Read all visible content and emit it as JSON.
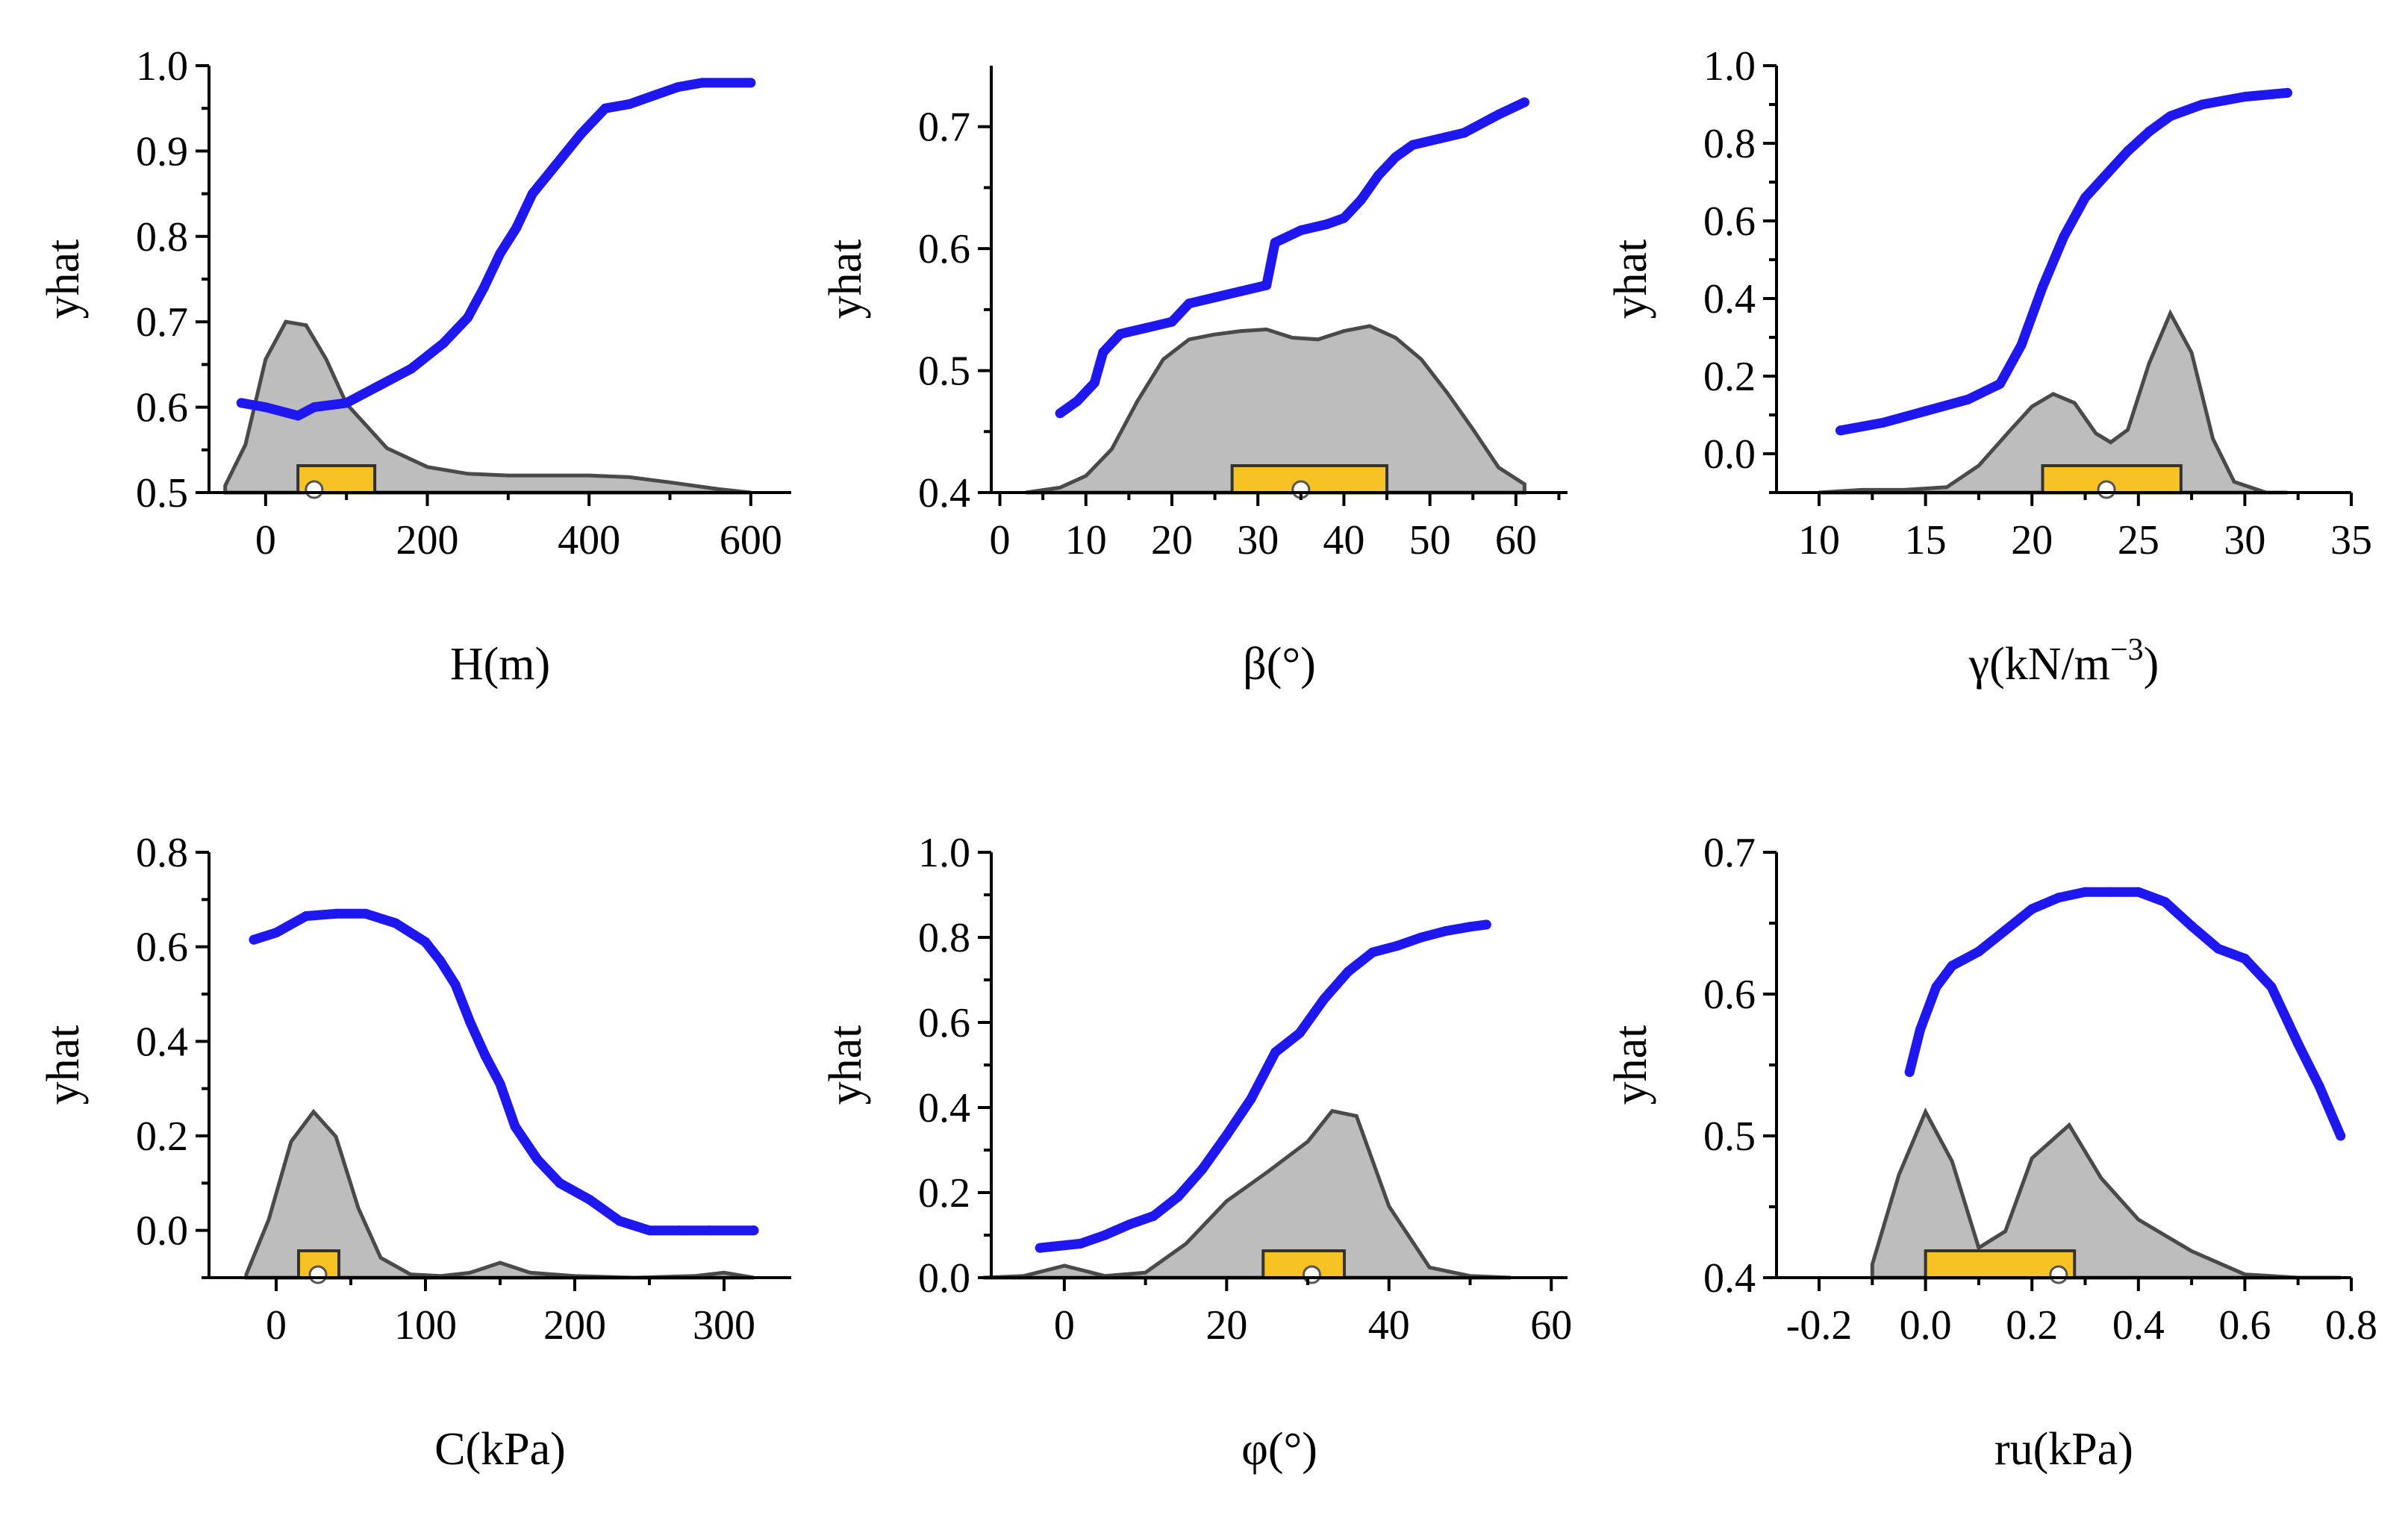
{
  "chart_data": [
    {
      "type": "line",
      "title": "",
      "xlabel": "H(m)",
      "ylabel": "yhat",
      "xlim": [
        -70,
        650
      ],
      "ylim": [
        0.5,
        1.0
      ],
      "xticks": [
        0,
        200,
        400,
        600
      ],
      "yticks": [
        0.5,
        0.6,
        0.7,
        0.8,
        0.9,
        1.0
      ],
      "xtick_labels": [
        "0",
        "200",
        "400",
        "600"
      ],
      "ytick_labels": [
        "0.5",
        "0.6",
        "0.7",
        "0.8",
        "0.9",
        "1.0"
      ],
      "series": [
        {
          "name": "yhat",
          "color": "#1f17f0",
          "x": [
            -30,
            0,
            40,
            60,
            100,
            140,
            180,
            220,
            250,
            270,
            290,
            310,
            330,
            360,
            390,
            420,
            450,
            480,
            510,
            540,
            600
          ],
          "y": [
            0.605,
            0.6,
            0.59,
            0.6,
            0.605,
            0.625,
            0.645,
            0.675,
            0.705,
            0.74,
            0.78,
            0.81,
            0.85,
            0.885,
            0.92,
            0.95,
            0.955,
            0.965,
            0.975,
            0.98,
            0.98
          ]
        }
      ],
      "density": {
        "color": "#bdbdbd",
        "x": [
          -50,
          -25,
          0,
          25,
          50,
          75,
          100,
          150,
          200,
          250,
          300,
          350,
          400,
          450,
          500,
          560,
          600
        ],
        "h": [
          0.04,
          0.28,
          0.78,
          1.0,
          0.98,
          0.78,
          0.52,
          0.26,
          0.15,
          0.11,
          0.1,
          0.1,
          0.1,
          0.09,
          0.06,
          0.02,
          0.0
        ]
      },
      "box": {
        "q1": 40,
        "q3": 135,
        "median": 60
      }
    },
    {
      "type": "line",
      "title": "",
      "xlabel": "β(°)",
      "ylabel": "yhat",
      "xlim": [
        -1,
        66
      ],
      "ylim": [
        0.4,
        0.75
      ],
      "xticks": [
        0,
        10,
        20,
        30,
        40,
        50,
        60
      ],
      "yticks": [
        0.4,
        0.5,
        0.6,
        0.7
      ],
      "xtick_labels": [
        "0",
        "10",
        "20",
        "30",
        "40",
        "50",
        "60"
      ],
      "ytick_labels": [
        "0.4",
        "0.5",
        "0.6",
        "0.7"
      ],
      "series": [
        {
          "name": "yhat",
          "color": "#1f17f0",
          "x": [
            7,
            9,
            11,
            12,
            14,
            17,
            20,
            22,
            25,
            28,
            31,
            32,
            35,
            38,
            40,
            42,
            44,
            46,
            48,
            51,
            54,
            58,
            61
          ],
          "y": [
            0.465,
            0.475,
            0.49,
            0.515,
            0.53,
            0.535,
            0.54,
            0.555,
            0.56,
            0.565,
            0.57,
            0.605,
            0.615,
            0.62,
            0.625,
            0.64,
            0.66,
            0.675,
            0.685,
            0.69,
            0.695,
            0.71,
            0.72
          ]
        }
      ],
      "density": {
        "color": "#bdbdbd",
        "x": [
          3,
          7,
          10,
          13,
          16,
          19,
          22,
          25,
          28,
          31,
          34,
          37,
          40,
          43,
          46,
          49,
          52,
          55,
          58,
          61
        ],
        "h": [
          0.0,
          0.03,
          0.1,
          0.26,
          0.55,
          0.8,
          0.92,
          0.95,
          0.97,
          0.98,
          0.93,
          0.92,
          0.97,
          1.0,
          0.93,
          0.8,
          0.6,
          0.38,
          0.15,
          0.05
        ]
      },
      "box": {
        "q1": 27,
        "q3": 45,
        "median": 35
      }
    },
    {
      "type": "line",
      "title": "",
      "xlabel": "γ(kN/m−3)",
      "ylabel": "yhat",
      "xlim": [
        8,
        35
      ],
      "ylim": [
        -0.1,
        1.0
      ],
      "xticks": [
        10,
        15,
        20,
        25,
        30,
        35
      ],
      "yticks": [
        0.0,
        0.2,
        0.4,
        0.6,
        0.8,
        1.0
      ],
      "xtick_labels": [
        "10",
        "15",
        "20",
        "25",
        "30",
        "35"
      ],
      "ytick_labels": [
        "0.0",
        "0.2",
        "0.4",
        "0.6",
        "0.8",
        "1.0"
      ],
      "series": [
        {
          "name": "yhat",
          "color": "#1f17f0",
          "x": [
            11,
            13,
            15,
            17,
            18.5,
            19.5,
            20.5,
            21.5,
            22.5,
            23.5,
            24.5,
            25.5,
            26.5,
            28,
            30,
            32
          ],
          "y": [
            0.06,
            0.08,
            0.11,
            0.14,
            0.18,
            0.28,
            0.43,
            0.56,
            0.66,
            0.72,
            0.78,
            0.83,
            0.87,
            0.9,
            0.92,
            0.93
          ]
        }
      ],
      "density": {
        "color": "#bdbdbd",
        "x": [
          10,
          12,
          14,
          16,
          17.5,
          19,
          20,
          21,
          22,
          23,
          23.7,
          24.5,
          25.5,
          26.5,
          27.5,
          28.5,
          29.5,
          31,
          32
        ],
        "h": [
          0.0,
          0.015,
          0.015,
          0.03,
          0.15,
          0.35,
          0.48,
          0.55,
          0.5,
          0.33,
          0.28,
          0.35,
          0.72,
          1.0,
          0.78,
          0.3,
          0.06,
          0.0,
          0.0
        ]
      },
      "box": {
        "q1": 20.5,
        "q3": 27,
        "median": 23.5
      }
    },
    {
      "type": "line",
      "title": "",
      "xlabel": "C(kPa)",
      "ylabel": "yhat",
      "xlim": [
        -45,
        345
      ],
      "ylim": [
        -0.1,
        0.8
      ],
      "xticks": [
        0,
        100,
        200,
        300
      ],
      "yticks": [
        0.0,
        0.2,
        0.4,
        0.6,
        0.8
      ],
      "xtick_labels": [
        "0",
        "100",
        "200",
        "300"
      ],
      "ytick_labels": [
        "0.0",
        "0.2",
        "0.4",
        "0.6",
        "0.8"
      ],
      "series": [
        {
          "name": "yhat",
          "color": "#1f17f0",
          "x": [
            -15,
            0,
            20,
            40,
            60,
            80,
            100,
            110,
            120,
            130,
            140,
            150,
            160,
            175,
            190,
            210,
            230,
            250,
            270,
            290,
            320
          ],
          "y": [
            0.615,
            0.63,
            0.665,
            0.67,
            0.67,
            0.65,
            0.61,
            0.57,
            0.52,
            0.44,
            0.37,
            0.31,
            0.22,
            0.15,
            0.1,
            0.065,
            0.02,
            0.0,
            0.0,
            0.0,
            0.0
          ]
        }
      ],
      "density": {
        "color": "#bdbdbd",
        "x": [
          -20,
          -5,
          10,
          25,
          40,
          55,
          70,
          90,
          110,
          130,
          150,
          170,
          200,
          240,
          280,
          300,
          320
        ],
        "h": [
          0.02,
          0.35,
          0.82,
          1.0,
          0.85,
          0.42,
          0.12,
          0.02,
          0.01,
          0.03,
          0.09,
          0.03,
          0.01,
          0.0,
          0.01,
          0.03,
          0.0
        ]
      },
      "box": {
        "q1": 15,
        "q3": 42,
        "median": 28
      }
    },
    {
      "type": "line",
      "title": "",
      "xlabel": "φ(°)",
      "ylabel": "yhat",
      "xlim": [
        -9,
        62
      ],
      "ylim": [
        0.0,
        1.0
      ],
      "xticks": [
        0,
        20,
        40,
        60
      ],
      "yticks": [
        0.0,
        0.2,
        0.4,
        0.6,
        0.8,
        1.0
      ],
      "xtick_labels": [
        "0",
        "20",
        "40",
        "60"
      ],
      "ytick_labels": [
        "0.0",
        "0.2",
        "0.4",
        "0.6",
        "0.8",
        "1.0"
      ],
      "series": [
        {
          "name": "yhat",
          "color": "#1f17f0",
          "x": [
            -3,
            2,
            5,
            8,
            11,
            14,
            17,
            20,
            23,
            26,
            29,
            32,
            35,
            38,
            41,
            44,
            47,
            50,
            52
          ],
          "y": [
            0.07,
            0.08,
            0.1,
            0.125,
            0.145,
            0.19,
            0.255,
            0.335,
            0.42,
            0.53,
            0.575,
            0.655,
            0.72,
            0.765,
            0.78,
            0.8,
            0.815,
            0.825,
            0.83
          ]
        }
      ],
      "density": {
        "color": "#bdbdbd",
        "x": [
          -10,
          -5,
          0,
          5,
          10,
          15,
          20,
          25,
          30,
          33,
          36,
          40,
          45,
          50,
          55
        ],
        "h": [
          0.0,
          0.01,
          0.07,
          0.01,
          0.03,
          0.2,
          0.45,
          0.62,
          0.8,
          0.98,
          0.95,
          0.42,
          0.06,
          0.01,
          0.0
        ]
      },
      "box": {
        "q1": 24.5,
        "q3": 34.5,
        "median": 30.5
      }
    },
    {
      "type": "line",
      "title": "",
      "xlabel": "ru(kPa)",
      "ylabel": "yhat",
      "xlim": [
        -0.28,
        0.8
      ],
      "ylim": [
        0.4,
        0.7
      ],
      "xticks": [
        -0.2,
        0.0,
        0.2,
        0.4,
        0.6,
        0.8
      ],
      "yticks": [
        0.4,
        0.5,
        0.6,
        0.7
      ],
      "xtick_labels": [
        "-0.2",
        "0.0",
        "0.2",
        "0.4",
        "0.6",
        "0.8"
      ],
      "ytick_labels": [
        "0.4",
        "0.5",
        "0.6",
        "0.7"
      ],
      "series": [
        {
          "name": "yhat",
          "color": "#1f17f0",
          "x": [
            -0.03,
            -0.01,
            0.02,
            0.05,
            0.1,
            0.15,
            0.2,
            0.25,
            0.3,
            0.35,
            0.4,
            0.45,
            0.5,
            0.55,
            0.6,
            0.65,
            0.7,
            0.74,
            0.78
          ],
          "y": [
            0.545,
            0.575,
            0.605,
            0.62,
            0.63,
            0.645,
            0.66,
            0.668,
            0.672,
            0.672,
            0.672,
            0.665,
            0.648,
            0.632,
            0.625,
            0.605,
            0.565,
            0.535,
            0.5
          ]
        }
      ],
      "density": {
        "color": "#bdbdbd",
        "x": [
          -0.1,
          -0.05,
          0.0,
          0.05,
          0.1,
          0.15,
          0.2,
          0.27,
          0.33,
          0.4,
          0.5,
          0.6,
          0.7,
          0.78
        ],
        "h": [
          0.08,
          0.62,
          1.0,
          0.7,
          0.18,
          0.28,
          0.72,
          0.92,
          0.6,
          0.35,
          0.16,
          0.02,
          0.0,
          0.0
        ]
      },
      "box": {
        "q1": 0.0,
        "q3": 0.28,
        "median": 0.25
      }
    }
  ]
}
